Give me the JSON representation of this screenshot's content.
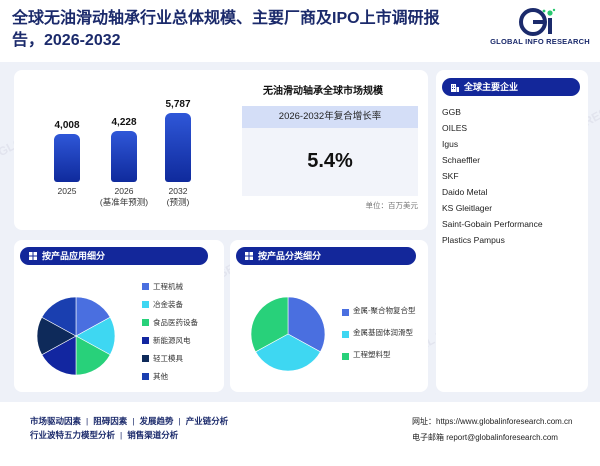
{
  "header": {
    "title": "全球无油滑动轴承行业总体规模、主要厂商及IPO上市调研报告，2026-2032",
    "logo_text": "GLOBAL INFO RESEARCH",
    "logo_icon": "gi-logo-icon"
  },
  "market": {
    "title": "无油滑动轴承全球市场规模",
    "cagr_label": "2026-2032年复合增长率",
    "cagr_value": "5.4%",
    "unit": "单位：百万美元"
  },
  "chart_data": [
    {
      "type": "bar",
      "categories": [
        "2025",
        "2026\n(基准年预测)",
        "2032\n(预测)"
      ],
      "values": [
        4008,
        4228,
        5787
      ],
      "value_labels": [
        "4,008",
        "4,228",
        "5,787"
      ],
      "category_labels": [
        [
          "2025"
        ],
        [
          "2026",
          "(基准年预测)"
        ],
        [
          "2032",
          "(预测)"
        ]
      ],
      "title": "",
      "xlabel": "",
      "ylabel": "",
      "ylim": [
        0,
        6000
      ],
      "grid": false
    },
    {
      "type": "pie",
      "categories": [
        "工程机械",
        "冶金装备",
        "食品医药设备",
        "新能源风电",
        "轻工模具",
        "其他"
      ],
      "values": [
        17,
        16,
        17,
        17,
        16,
        17
      ],
      "colors": [
        "#4a6fe0",
        "#3ed7f2",
        "#28d17a",
        "#1226a0",
        "#0e2a5a",
        "#1a3fb0"
      ],
      "title": ""
    },
    {
      "type": "pie",
      "categories": [
        "金属-聚合物复合型",
        "金属基固体润滑型",
        "工程塑料型"
      ],
      "values": [
        33,
        34,
        33
      ],
      "colors": [
        "#4a6fe0",
        "#3ed7f2",
        "#28d17a"
      ],
      "title": ""
    }
  ],
  "companies": {
    "title": "全球主要企业",
    "icon": "building-icon",
    "items": [
      "GGB",
      "OILES",
      "Igus",
      "Schaeffler",
      "SKF",
      "Daido Metal",
      "KS Gleitlager",
      "Saint-Gobain Performance",
      "Plastics Pampus"
    ]
  },
  "application": {
    "title": "按产品应用细分",
    "icon": "grid-icon"
  },
  "product_type": {
    "title": "按产品分类细分",
    "icon": "grid-icon"
  },
  "footer": {
    "links_row1": [
      "市场驱动因素",
      "阻碍因素",
      "发展趋势",
      "产业链分析"
    ],
    "links_row2": [
      "行业波特五力模型分析",
      "销售渠道分析"
    ],
    "website": "网址：https://www.globalinforesearch.com.cn",
    "email": "电子邮箱 report@globalinforesearch.com"
  },
  "watermark": "GLOBAL INFO RESEARCH"
}
